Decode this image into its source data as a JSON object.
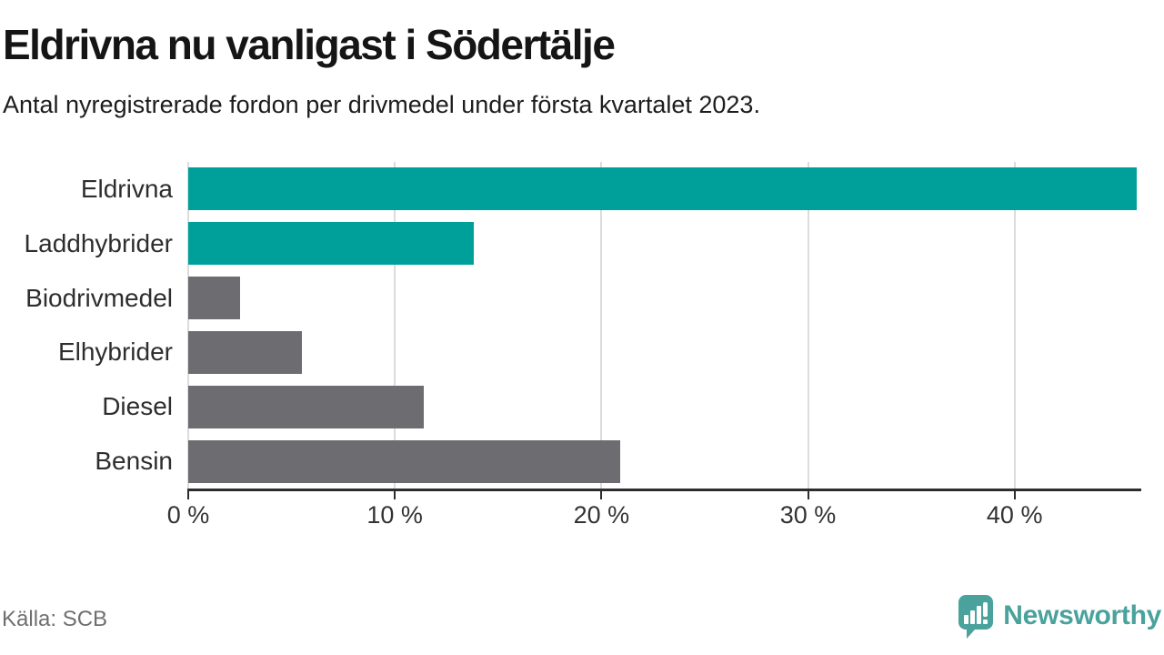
{
  "header": {
    "title": "Eldrivna nu vanligast i Södertälje",
    "subtitle": "Antal nyregistrerade fordon per drivmedel under första kvartalet 2023."
  },
  "chart_data": {
    "type": "bar",
    "orientation": "horizontal",
    "title": "Eldrivna nu vanligast i Södertälje",
    "subtitle": "Antal nyregistrerade fordon per drivmedel under första kvartalet 2023.",
    "categories": [
      "Eldrivna",
      "Laddhybrider",
      "Biodrivmedel",
      "Elhybrider",
      "Diesel",
      "Bensin"
    ],
    "values": [
      45.9,
      13.8,
      2.5,
      5.5,
      11.4,
      20.9
    ],
    "unit": "%",
    "bar_colors": [
      "#00a09a",
      "#00a09a",
      "#6c6c71",
      "#6c6c71",
      "#6c6c71",
      "#6c6c71"
    ],
    "xlim": [
      0,
      46
    ],
    "ticks": [
      0,
      10,
      20,
      30,
      40
    ],
    "tick_labels": [
      "0 %",
      "10 %",
      "20 %",
      "30 %",
      "40 %"
    ],
    "grid": "vertical",
    "legend": "none"
  },
  "footer": {
    "source": "Källa: SCB",
    "brand": "Newsworthy"
  },
  "colors": {
    "highlight": "#00a09a",
    "neutral": "#6c6c71",
    "grid": "#dcdcdc",
    "axis": "#2d2d2d",
    "brand_teal": "#4aa29d"
  }
}
